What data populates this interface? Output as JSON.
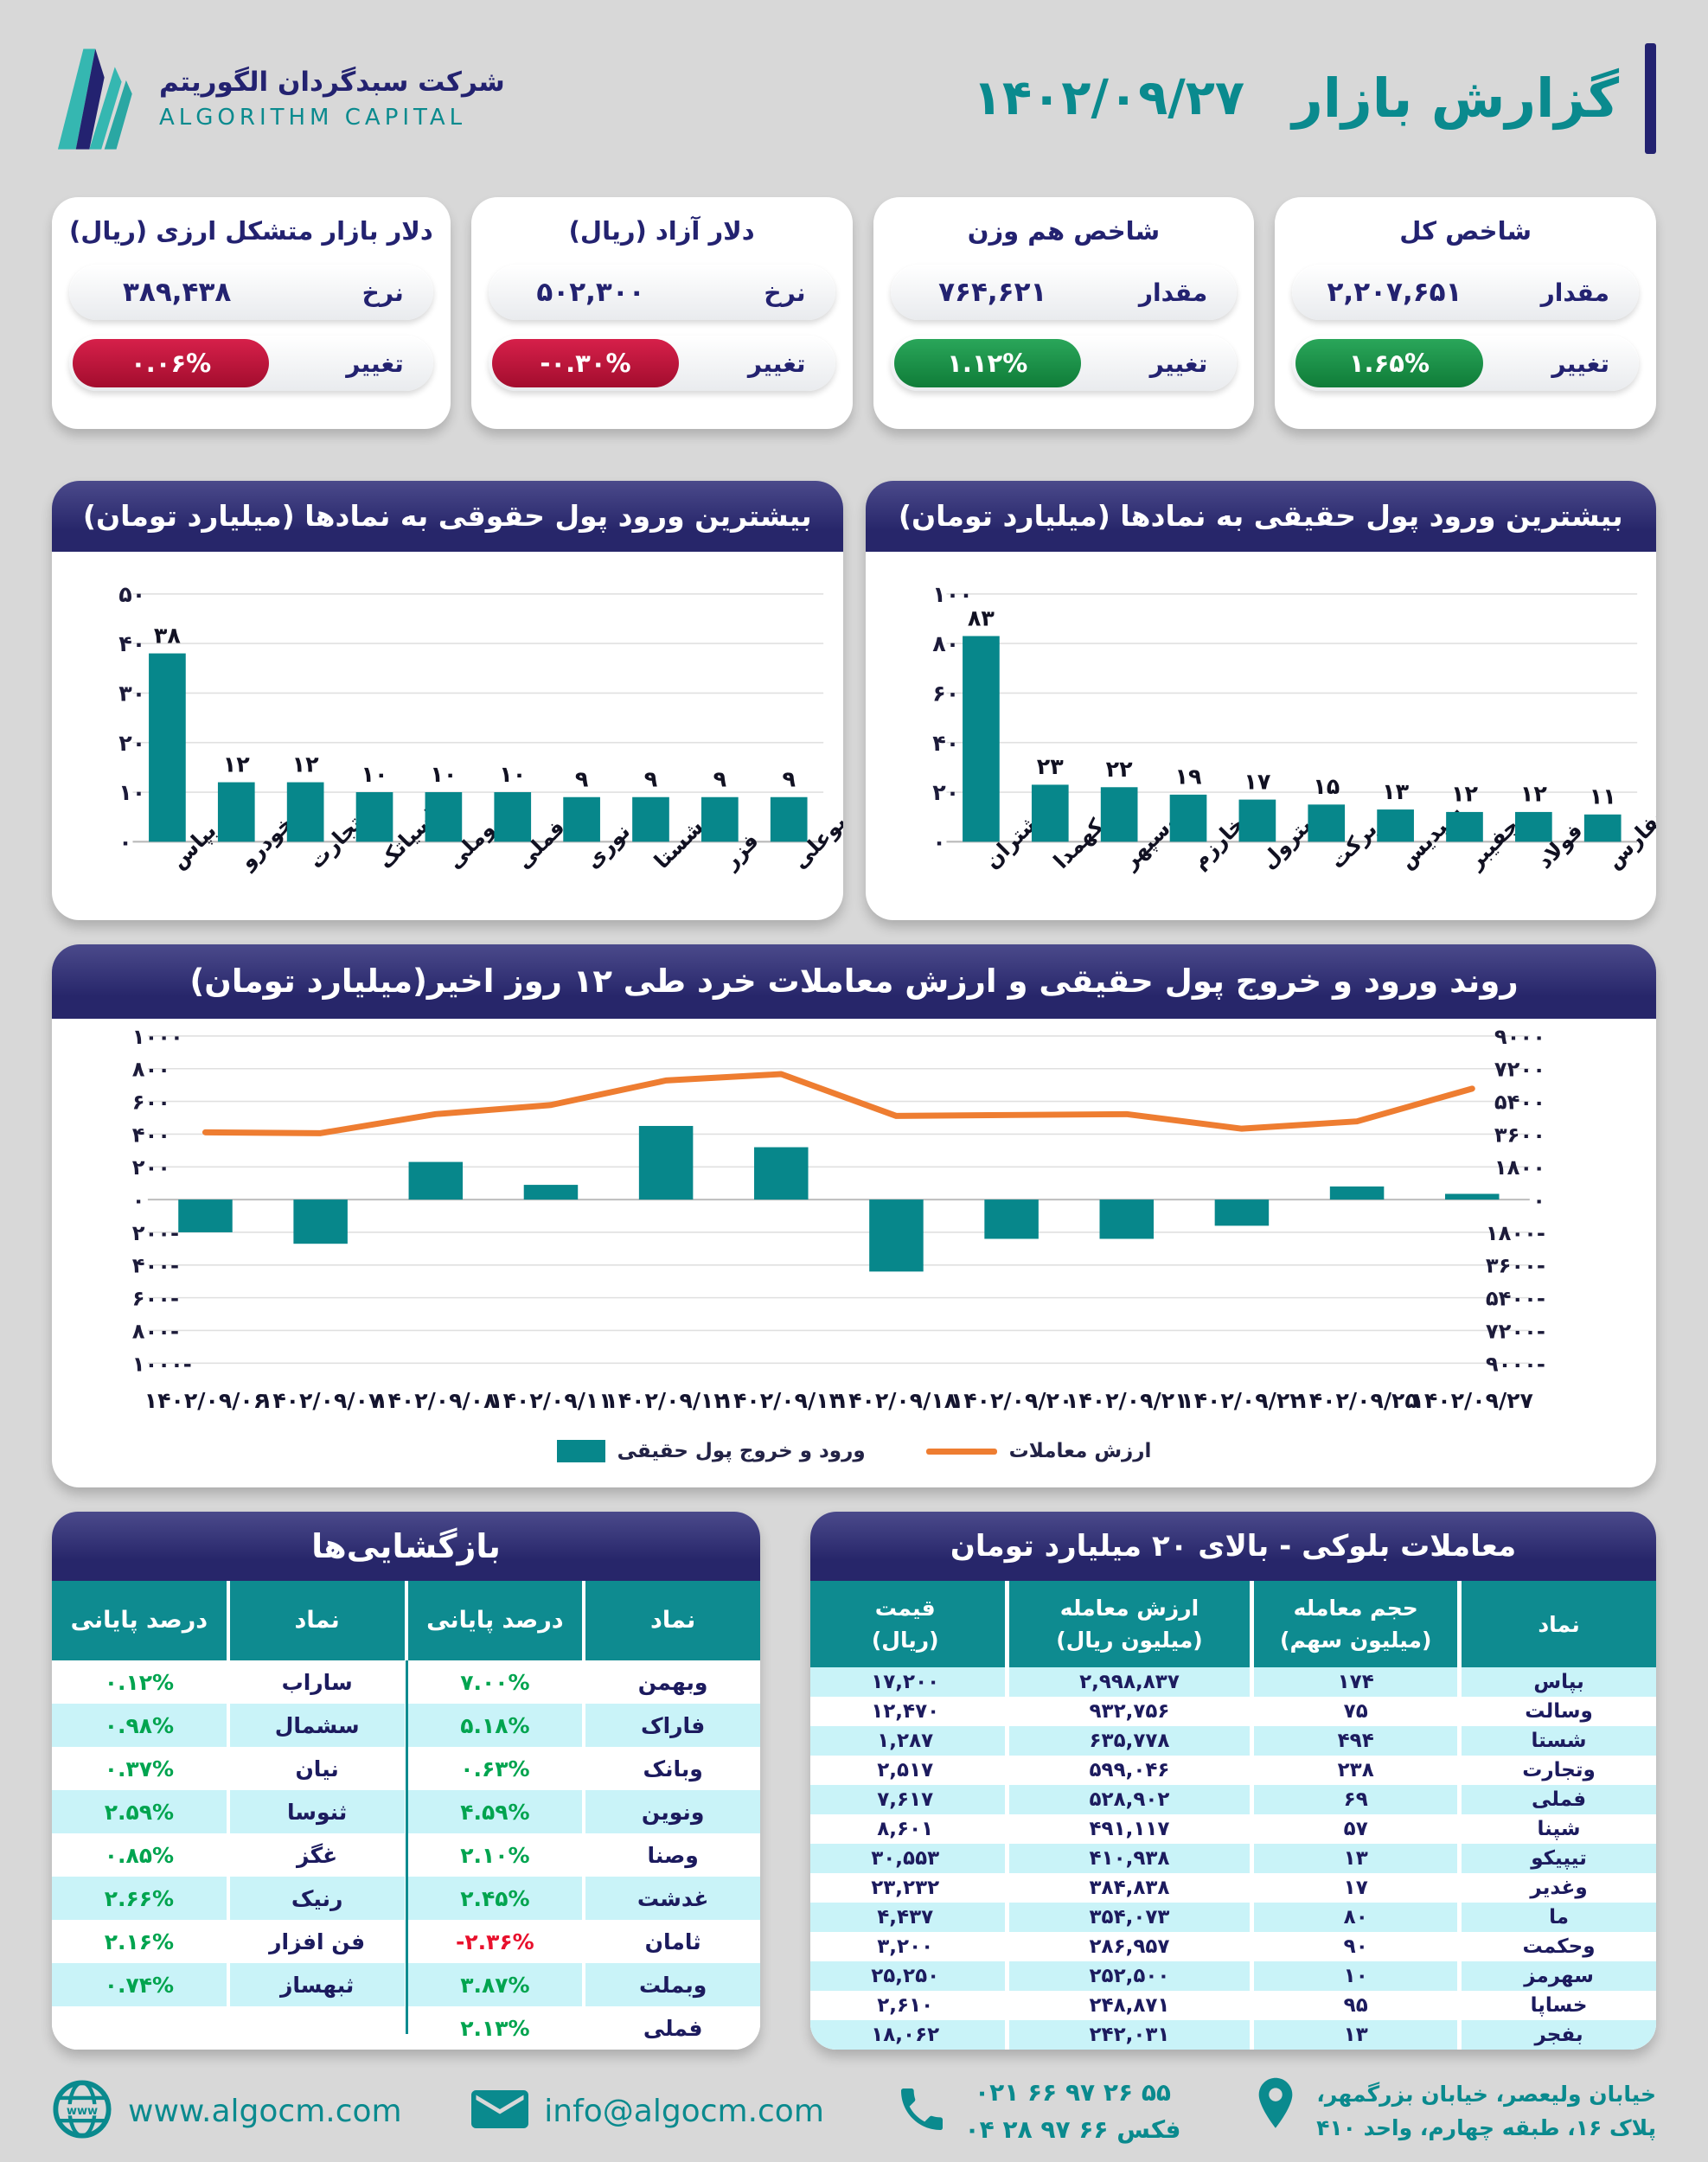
{
  "header": {
    "report_title": "گزارش بازار",
    "report_date": "۱۴۰۲/۰۹/۲۷",
    "company_name_fa": "شرکت سبدگردان الگوریتم",
    "company_name_en": "ALGORITHM CAPITAL"
  },
  "colors": {
    "page_bg": "#d8d8d8",
    "navy": "#27266a",
    "teal": "#07878b",
    "table_header_teal": "#0e8b90",
    "cyan_row": "#c9f3f8",
    "orange_line": "#ee7d31",
    "green_text": "#00a44f",
    "red_text": "#e8112d",
    "badge_green": "#1d9b4a",
    "badge_red": "#c41239"
  },
  "stat_cards": [
    {
      "title": "شاخص کل",
      "value_label": "مقدار",
      "value": "۲,۲۰۷,۶۵۱",
      "change_label": "تغییر",
      "change": "۱.۶۵%",
      "trend": "up"
    },
    {
      "title": "شاخص هم وزن",
      "value_label": "مقدار",
      "value": "۷۶۴,۶۲۱",
      "change_label": "تغییر",
      "change": "۱.۱۲%",
      "trend": "up"
    },
    {
      "title": "دلار آزاد (ریال)",
      "value_label": "نرخ",
      "value": "۵۰۲,۳۰۰",
      "change_label": "تغییر",
      "change": "-۰.۳۰%",
      "trend": "down"
    },
    {
      "title": "دلار بازار متشکل ارزی (ریال)",
      "value_label": "نرخ",
      "value": "۳۸۹,۴۳۸",
      "change_label": "تغییر",
      "change": "۰.۰۶%",
      "trend": "down"
    }
  ],
  "chart_data": [
    {
      "id": "real_inflow",
      "type": "bar",
      "title": "بیشترین ورود پول حقیقی به نمادها (میلیارد تومان)",
      "categories": [
        "شتران",
        "کهمدا",
        "وسپهر",
        "وخارزم",
        "پترول",
        "برکت",
        "شپدیس",
        "چفیبر",
        "فولاد",
        "حفارس"
      ],
      "values": [
        83,
        23,
        22,
        19,
        17,
        15,
        13,
        12,
        12,
        11
      ],
      "value_labels": [
        "۸۳",
        "۲۳",
        "۲۲",
        "۱۹",
        "۱۷",
        "۱۵",
        "۱۳",
        "۱۲",
        "۱۲",
        "۱۱"
      ],
      "ylim": [
        0,
        100
      ],
      "yticks": [
        {
          "v": 0,
          "label": "۰"
        },
        {
          "v": 20,
          "label": "۲۰"
        },
        {
          "v": 40,
          "label": "۴۰"
        },
        {
          "v": 60,
          "label": "۶۰"
        },
        {
          "v": 80,
          "label": "۸۰"
        },
        {
          "v": 100,
          "label": "۱۰۰"
        }
      ],
      "bar_color": "#07878b",
      "grid": true
    },
    {
      "id": "legal_inflow",
      "type": "bar",
      "title": "بیشترین ورود پول حقوقی به نمادها (میلیارد تومان)",
      "categories": [
        "بپاس",
        "خودرو",
        "وتجارت",
        "اسیاتک",
        "وملی",
        "فملی",
        "نوری",
        "شستا",
        "فزر",
        "بوعلی"
      ],
      "values": [
        38,
        12,
        12,
        10,
        10,
        10,
        9,
        9,
        9,
        9
      ],
      "value_labels": [
        "۳۸",
        "۱۲",
        "۱۲",
        "۱۰",
        "۱۰",
        "۱۰",
        "۹",
        "۹",
        "۹",
        "۹"
      ],
      "ylim": [
        0,
        50
      ],
      "yticks": [
        {
          "v": 0,
          "label": "۰"
        },
        {
          "v": 10,
          "label": "۱۰"
        },
        {
          "v": 20,
          "label": "۲۰"
        },
        {
          "v": 30,
          "label": "۳۰"
        },
        {
          "v": 40,
          "label": "۴۰"
        },
        {
          "v": 50,
          "label": "۵۰"
        }
      ],
      "bar_color": "#07878b",
      "grid": true
    },
    {
      "id": "trend",
      "type": "bar+line",
      "title": "روند ورود و خروج پول حقیقی و ارزش معاملات خرد طی ۱۲ روز اخیر(میلیارد تومان)",
      "categories": [
        "۱۴۰۲/۰۹/۰۶",
        "۱۴۰۲/۰۹/۰۷",
        "۱۴۰۲/۰۹/۰۸",
        "۱۴۰۲/۰۹/۱۱",
        "۱۴۰۲/۰۹/۱۲",
        "۱۴۰۲/۰۹/۱۳",
        "۱۴۰۲/۰۹/۱۸",
        "۱۴۰۲/۰۹/۲۰",
        "۱۴۰۲/۰۹/۲۱",
        "۱۴۰۲/۰۹/۲۲",
        "۱۴۰۲/۰۹/۲۵",
        "۱۴۰۲/۰۹/۲۷"
      ],
      "bar_series": {
        "name": "ورود و خروج پول حقیقی",
        "color": "#07878b",
        "values": [
          -200,
          -270,
          230,
          90,
          450,
          320,
          -440,
          -240,
          -240,
          -160,
          80,
          35
        ]
      },
      "line_series": {
        "name": "ارزش معاملات",
        "color": "#ee7d31",
        "values": [
          3700,
          3650,
          4700,
          5200,
          6550,
          6900,
          4600,
          4650,
          4700,
          3900,
          4300,
          6100
        ]
      },
      "left_axis": {
        "min": -1000,
        "max": 1000,
        "step": 200,
        "tick_labels_top_to_bottom": [
          "۱۰۰۰",
          "۸۰۰",
          "۶۰۰",
          "۴۰۰",
          "۲۰۰",
          "۰",
          "-۲۰۰",
          "-۴۰۰",
          "-۶۰۰",
          "-۸۰۰",
          "-۱۰۰۰"
        ]
      },
      "right_axis": {
        "min": -9000,
        "max": 9000,
        "step": 1800,
        "tick_labels_top_to_bottom": [
          "۹۰۰۰",
          "۷۲۰۰",
          "۵۴۰۰",
          "۳۶۰۰",
          "۱۸۰۰",
          "۰",
          "-۱۸۰۰",
          "-۳۶۰۰",
          "-۵۴۰۰",
          "-۷۲۰۰",
          "-۹۰۰۰"
        ]
      },
      "legend_position": "bottom",
      "grid": true
    }
  ],
  "reopen_table": {
    "title": "بازگشایی‌ها",
    "col_headers": [
      "نماد",
      "درصد پایانی",
      "نماد",
      "درصد پایانی"
    ],
    "rows": [
      {
        "right_symbol": "وبهمن",
        "right_pct": "۷.۰۰%",
        "right_neg": false,
        "left_symbol": "ساراب",
        "left_pct": "۰.۱۲%",
        "left_neg": false
      },
      {
        "right_symbol": "فاراک",
        "right_pct": "۵.۱۸%",
        "right_neg": false,
        "left_symbol": "سشمال",
        "left_pct": "۰.۹۸%",
        "left_neg": false
      },
      {
        "right_symbol": "وبانک",
        "right_pct": "۰.۶۳%",
        "right_neg": false,
        "left_symbol": "نیان",
        "left_pct": "۰.۳۷%",
        "left_neg": false
      },
      {
        "right_symbol": "ونوین",
        "right_pct": "۴.۵۹%",
        "right_neg": false,
        "left_symbol": "ثنوسا",
        "left_pct": "۲.۵۹%",
        "left_neg": false
      },
      {
        "right_symbol": "وصنا",
        "right_pct": "۲.۱۰%",
        "right_neg": false,
        "left_symbol": "غگز",
        "left_pct": "۰.۸۵%",
        "left_neg": false
      },
      {
        "right_symbol": "غدشت",
        "right_pct": "۲.۴۵%",
        "right_neg": false,
        "left_symbol": "رنیک",
        "left_pct": "۲.۶۶%",
        "left_neg": false
      },
      {
        "right_symbol": "ثامان",
        "right_pct": "-۲.۳۶%",
        "right_neg": true,
        "left_symbol": "فن افزار",
        "left_pct": "۲.۱۶%",
        "left_neg": false
      },
      {
        "right_symbol": "وبملت",
        "right_pct": "۳.۸۷%",
        "right_neg": false,
        "left_symbol": "ثبهساز",
        "left_pct": "۰.۷۴%",
        "left_neg": false
      },
      {
        "right_symbol": "فملی",
        "right_pct": "۲.۱۳%",
        "right_neg": false,
        "left_symbol": "",
        "left_pct": "",
        "left_neg": false
      }
    ]
  },
  "block_table": {
    "title": "معاملات بلوکی - بالای ۲۰ میلیارد تومان",
    "col_headers": [
      {
        "line1": "نماد",
        "line2": ""
      },
      {
        "line1": "حجم معامله",
        "line2": "(میلیون سهم)"
      },
      {
        "line1": "ارزش معامله",
        "line2": "(میلیون ریال)"
      },
      {
        "line1": "قیمت",
        "line2": "(ریال)"
      }
    ],
    "rows": [
      [
        "بپاس",
        "۱۷۴",
        "۲,۹۹۸,۸۳۷",
        "۱۷,۲۰۰"
      ],
      [
        "وسالت",
        "۷۵",
        "۹۳۲,۷۵۶",
        "۱۲,۴۷۰"
      ],
      [
        "شستا",
        "۴۹۴",
        "۶۳۵,۷۷۸",
        "۱,۲۸۷"
      ],
      [
        "وتجارت",
        "۲۳۸",
        "۵۹۹,۰۴۶",
        "۲,۵۱۷"
      ],
      [
        "فملی",
        "۶۹",
        "۵۲۸,۹۰۲",
        "۷,۶۱۷"
      ],
      [
        "شپنا",
        "۵۷",
        "۴۹۱,۱۱۷",
        "۸,۶۰۱"
      ],
      [
        "تیپیکو",
        "۱۳",
        "۴۱۰,۹۳۸",
        "۳۰,۵۵۳"
      ],
      [
        "وغدیر",
        "۱۷",
        "۳۸۴,۸۳۸",
        "۲۳,۲۳۲"
      ],
      [
        "ما",
        "۸۰",
        "۳۵۴,۰۷۳",
        "۴,۴۳۷"
      ],
      [
        "وحکمت",
        "۹۰",
        "۲۸۶,۹۵۷",
        "۳,۲۰۰"
      ],
      [
        "سهرمز",
        "۱۰",
        "۲۵۲,۵۰۰",
        "۲۵,۲۵۰"
      ],
      [
        "خساپا",
        "۹۵",
        "۲۴۸,۸۷۱",
        "۲,۶۱۰"
      ],
      [
        "بفجر",
        "۱۳",
        "۲۴۲,۰۳۱",
        "۱۸,۰۶۲"
      ]
    ]
  },
  "footer": {
    "website": "www.algocm.com",
    "email": "info@algocm.com",
    "phone_line1": "۰۲۱ ۶۶ ۹۷ ۲۶ ۵۵",
    "phone_line2": "۰۴ ۲۸ ۹۷ ۶۶ فکس",
    "address_line1": "خیابان ولیعصر، خیابان بزرگمهر،",
    "address_line2": "پلاک ۱۶، طبقه چهارم، واحد ۴۱۰"
  }
}
